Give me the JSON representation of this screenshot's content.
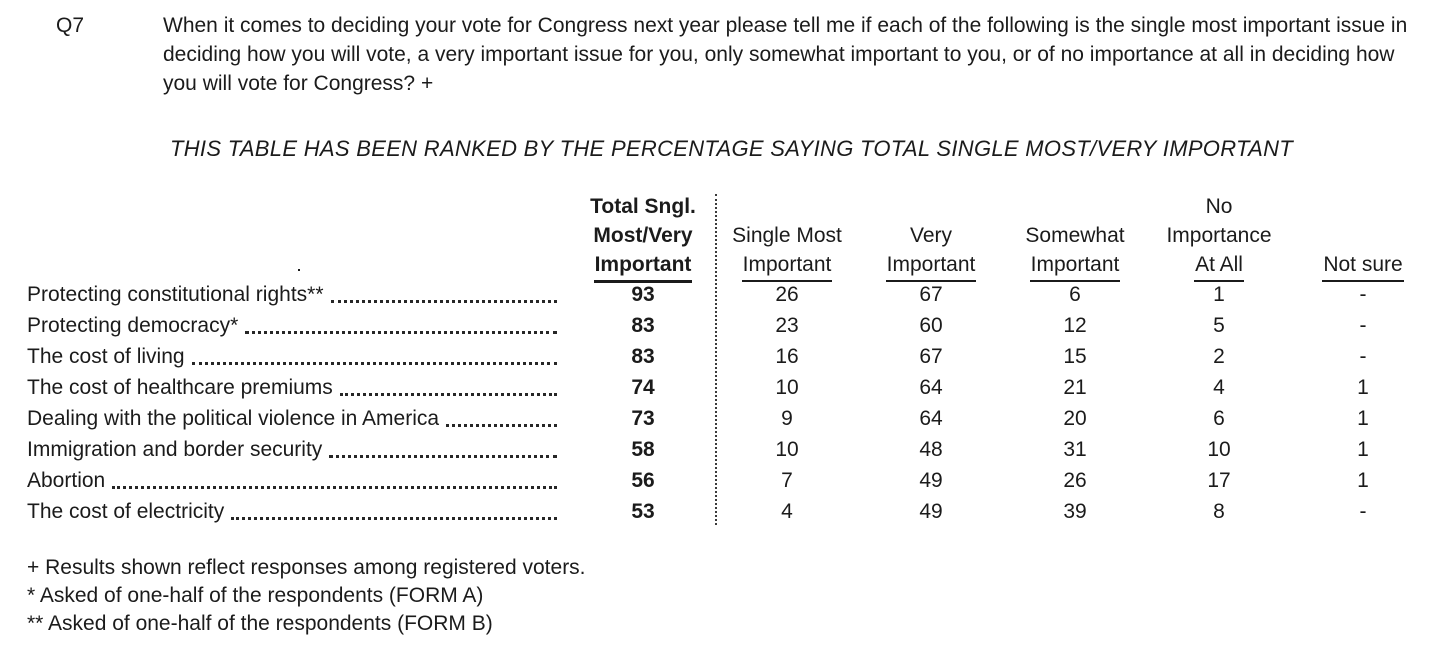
{
  "question": {
    "number": "Q7",
    "text": "When it comes to deciding your vote for Congress next year please tell me if each of the following is the single most important issue in deciding how you will vote, a very important issue for you, only somewhat important to you, or of no importance at all in deciding how you will vote for Congress? +"
  },
  "rank_note": "THIS TABLE HAS BEEN RANKED BY THE PERCENTAGE SAYING TOTAL SINGLE MOST/VERY IMPORTANT",
  "table": {
    "header_cols": [
      {
        "top": "",
        "mid": "",
        "bottom": ""
      },
      {
        "top": "Total Sngl.",
        "mid": "Most/Very",
        "bottom": "Important"
      },
      {
        "top": "",
        "mid": "Single Most",
        "bottom": "Important"
      },
      {
        "top": "",
        "mid": "Very",
        "bottom": "Important"
      },
      {
        "top": "",
        "mid": "Somewhat",
        "bottom": "Important"
      },
      {
        "top": "No",
        "mid": "Importance",
        "bottom": "At All"
      },
      {
        "top": "",
        "mid": "",
        "bottom": "Not sure"
      }
    ],
    "rows": [
      {
        "label": "Protecting constitutional rights**",
        "values": [
          "93",
          "26",
          "67",
          "6",
          "1",
          "-"
        ]
      },
      {
        "label": "Protecting democracy*",
        "values": [
          "83",
          "23",
          "60",
          "12",
          "5",
          "-"
        ]
      },
      {
        "label": "The cost of living",
        "values": [
          "83",
          "16",
          "67",
          "15",
          "2",
          "-"
        ]
      },
      {
        "label": "The cost of healthcare premiums",
        "values": [
          "74",
          "10",
          "64",
          "21",
          "4",
          "1"
        ]
      },
      {
        "label": "Dealing with the political violence in America",
        "values": [
          "73",
          "9",
          "64",
          "20",
          "6",
          "1"
        ]
      },
      {
        "label": "Immigration and border security",
        "values": [
          "58",
          "10",
          "48",
          "31",
          "10",
          "1"
        ]
      },
      {
        "label": "Abortion",
        "values": [
          "56",
          "7",
          "49",
          "26",
          "17",
          "1"
        ]
      },
      {
        "label": "The cost of electricity",
        "values": [
          "53",
          "4",
          "49",
          "39",
          "8",
          "-"
        ]
      }
    ]
  },
  "footnotes": [
    "+ Results shown reflect responses among registered voters.",
    "* Asked of one-half of the respondents (FORM A)",
    "** Asked of one-half of the respondents (FORM B)"
  ],
  "colors": {
    "text": "#1b1b1b",
    "background": "#ffffff"
  }
}
